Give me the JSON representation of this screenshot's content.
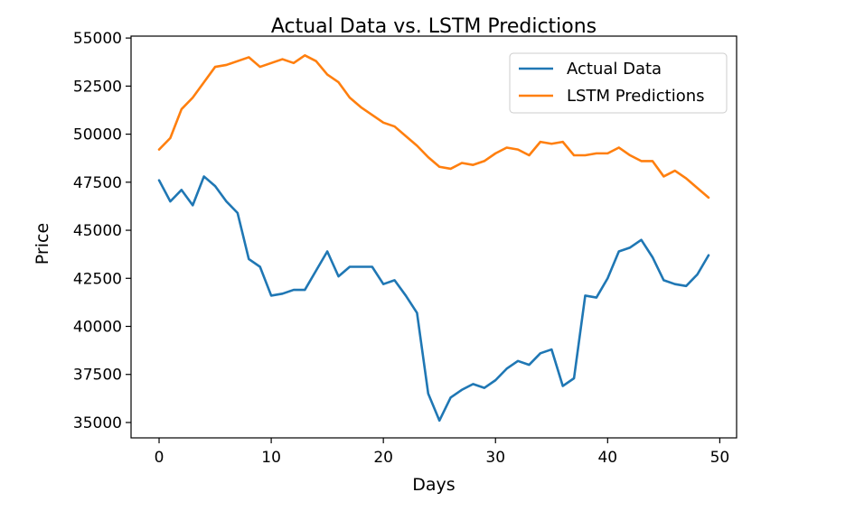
{
  "chart_data": {
    "type": "line",
    "title": "Actual Data vs. LSTM Predictions",
    "xlabel": "Days",
    "ylabel": "Price",
    "xlim": [
      -2.5,
      51.5
    ],
    "ylim": [
      34200,
      55100
    ],
    "xticks": [
      0,
      10,
      20,
      30,
      40,
      50
    ],
    "yticks": [
      35000,
      37500,
      40000,
      42500,
      45000,
      47500,
      50000,
      52500,
      55000
    ],
    "grid": false,
    "legend_position": "top-right",
    "x": [
      0,
      1,
      2,
      3,
      4,
      5,
      6,
      7,
      8,
      9,
      10,
      11,
      12,
      13,
      14,
      15,
      16,
      17,
      18,
      19,
      20,
      21,
      22,
      23,
      24,
      25,
      26,
      27,
      28,
      29,
      30,
      31,
      32,
      33,
      34,
      35,
      36,
      37,
      38,
      39,
      40,
      41,
      42,
      43,
      44,
      45,
      46,
      47,
      48,
      49
    ],
    "series": [
      {
        "name": "Actual Data",
        "color": "#1f77b4",
        "values": [
          47600,
          46500,
          47100,
          46300,
          47800,
          47300,
          46500,
          45900,
          43500,
          43100,
          41600,
          41700,
          41900,
          41900,
          42900,
          43900,
          42600,
          43100,
          43100,
          43100,
          42200,
          42400,
          41600,
          40700,
          36500,
          35100,
          36300,
          36700,
          37000,
          36800,
          37200,
          37800,
          38200,
          38000,
          38600,
          38800,
          36900,
          37300,
          41600,
          41500,
          42500,
          43900,
          44100,
          44500,
          43600,
          42400,
          42200,
          42100,
          42700,
          43700
        ]
      },
      {
        "name": "LSTM Predictions",
        "color": "#ff7f0e",
        "values": [
          49200,
          49800,
          51300,
          51900,
          52700,
          53500,
          53600,
          53800,
          54000,
          53500,
          53700,
          53900,
          53700,
          54100,
          53800,
          53100,
          52700,
          51900,
          51400,
          51000,
          50600,
          50400,
          49900,
          49400,
          48800,
          48300,
          48200,
          48500,
          48400,
          48600,
          49000,
          49300,
          49200,
          48900,
          49600,
          49500,
          49600,
          48900,
          48900,
          49000,
          49000,
          49300,
          48900,
          48600,
          48600,
          47800,
          48100,
          47700,
          47200,
          46700
        ]
      }
    ]
  }
}
